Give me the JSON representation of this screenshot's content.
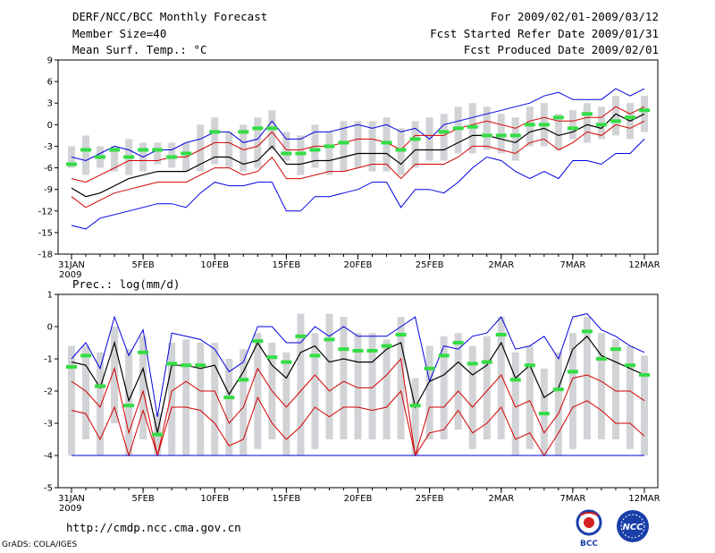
{
  "header": {
    "title": "DERF/NCC/BCC Monthly Forecast",
    "member_size": "Member Size=40",
    "variable": "Mean Surf. Temp.: °C",
    "period": "For 2009/02/01-2009/03/12",
    "refer_date": "Fcst Started Refer Date 2009/01/31",
    "produced_date": "Fcst Produced Date 2009/02/01"
  },
  "footer": {
    "url": "http://cmdp.ncc.cma.gov.cn",
    "credit": "GrADS: COLA/IGES",
    "logo_bcc": "BCC",
    "logo_ncc": "NCC"
  },
  "colors": {
    "box": "#d2d3d6",
    "mean": "#000000",
    "spread": "#d40000",
    "extreme": "#0000e0",
    "obs": "#33dd44"
  },
  "chart_data": [
    {
      "type": "line",
      "title": "Mean Surf. Temp.: °C",
      "x_days": 41,
      "ylim": [
        -18,
        9
      ],
      "yticks": [
        -18,
        -15,
        -12,
        -9,
        -6,
        -3,
        0,
        3,
        6,
        9
      ],
      "xtick_labels": [
        "31JAN",
        "5FEB",
        "10FEB",
        "15FEB",
        "20FEB",
        "25FEB",
        "2MAR",
        "7MAR",
        "12MAR"
      ],
      "xtick_days": [
        0,
        5,
        10,
        15,
        20,
        25,
        30,
        35,
        40
      ],
      "year_label": "2009",
      "series": [
        {
          "name": "max",
          "role": "extreme",
          "values": [
            -4.5,
            -5,
            -4,
            -3,
            -3.5,
            -4.5,
            -3.5,
            -3.5,
            -2.5,
            -2,
            -1,
            -1,
            -2.5,
            -2,
            0.5,
            -2,
            -2,
            -1,
            -1,
            -0.5,
            0,
            -0.5,
            0,
            -1,
            -0.5,
            -2,
            0,
            0.5,
            1,
            1.5,
            2,
            2.5,
            3,
            4,
            4.5,
            3.5,
            3.5,
            3.5,
            5,
            4,
            5
          ]
        },
        {
          "name": "p75",
          "role": "spread",
          "values": [
            -7.5,
            -8,
            -7,
            -6,
            -5,
            -5,
            -5,
            -4.5,
            -4.5,
            -3.5,
            -2.5,
            -2.5,
            -3.5,
            -3,
            -1,
            -3.5,
            -3.5,
            -3,
            -3,
            -2.5,
            -2,
            -2,
            -2.5,
            -3.5,
            -1.5,
            -1.5,
            -1.5,
            -0.5,
            0,
            0.5,
            0,
            -0.5,
            0.5,
            1,
            0.5,
            0.5,
            1,
            1,
            2.5,
            1.5,
            2.5
          ]
        },
        {
          "name": "mean",
          "role": "mean",
          "values": [
            -8.8,
            -10,
            -9.5,
            -8.5,
            -7.5,
            -7,
            -6.5,
            -6.5,
            -6.5,
            -5.5,
            -4.5,
            -4.5,
            -5.5,
            -5,
            -3,
            -5.5,
            -5.5,
            -5,
            -5,
            -4.5,
            -4,
            -4,
            -4,
            -5.5,
            -3.5,
            -3.5,
            -3.5,
            -2.5,
            -1.5,
            -1.5,
            -2,
            -2.5,
            -1,
            -0.5,
            -1.5,
            -1,
            0,
            -0.5,
            1.5,
            0.5,
            1.5
          ]
        },
        {
          "name": "p25",
          "role": "spread",
          "values": [
            -10,
            -11.5,
            -10.5,
            -9.5,
            -9,
            -8.5,
            -8,
            -8,
            -8,
            -7,
            -6,
            -6,
            -7,
            -6.5,
            -4.5,
            -7.5,
            -7.5,
            -7,
            -6.5,
            -6.5,
            -6,
            -5.5,
            -5.5,
            -7.5,
            -5.5,
            -5.5,
            -5.5,
            -4.5,
            -3,
            -3,
            -3.5,
            -4,
            -2.5,
            -2,
            -3.5,
            -2.5,
            -1,
            -1.5,
            0,
            -0.5,
            0.5
          ]
        },
        {
          "name": "min",
          "role": "extreme",
          "values": [
            -14,
            -14.5,
            -13,
            -12.5,
            -12,
            -11.5,
            -11,
            -11,
            -11.5,
            -9.5,
            -8,
            -8.5,
            -8.5,
            -8,
            -8,
            -12,
            -12,
            -10,
            -10,
            -9.5,
            -9,
            -8,
            -8,
            -11.5,
            -9,
            -9,
            -9.5,
            -8,
            -6,
            -4.5,
            -5,
            -6.5,
            -7.5,
            -6.5,
            -7.5,
            -5,
            -5,
            -5.5,
            -4,
            -4,
            -2
          ]
        },
        {
          "name": "obs",
          "role": "obs",
          "values": [
            -5.5,
            -3.5,
            -4.5,
            -3.5,
            -4.5,
            -3.5,
            -3.5,
            -4.5,
            -4,
            null,
            -1,
            null,
            -1,
            -0.5,
            -0.5,
            -4,
            -4,
            -3.5,
            -3,
            -2.5,
            null,
            null,
            -2.5,
            -3.5,
            -2,
            null,
            -1,
            -0.5,
            -0.3,
            -1.5,
            -1.5,
            -1.5,
            0,
            0,
            1,
            -0.5,
            1.5,
            0,
            0.5,
            1,
            2
          ]
        }
      ],
      "box_ranges": [
        [
          -6,
          -3
        ],
        [
          -7,
          -1.5
        ],
        [
          -6,
          -3
        ],
        [
          -6.5,
          -3
        ],
        [
          -7,
          -2
        ],
        [
          -6.5,
          -2.5
        ],
        [
          -5.5,
          -2.5
        ],
        [
          -6,
          -2.5
        ],
        [
          -6.5,
          -2.5
        ],
        [
          -6.5,
          0
        ],
        [
          -5.5,
          1
        ],
        [
          -6,
          -1
        ],
        [
          -6.5,
          0
        ],
        [
          -6,
          1
        ],
        [
          -3.5,
          2
        ],
        [
          -5,
          -1
        ],
        [
          -7,
          -1.5
        ],
        [
          -6,
          0
        ],
        [
          -7,
          -1
        ],
        [
          -6.5,
          0.5
        ],
        [
          -6,
          0.5
        ],
        [
          -6.5,
          0.5
        ],
        [
          -6.5,
          1
        ],
        [
          -7,
          -0.5
        ],
        [
          -6,
          0.5
        ],
        [
          -5,
          1
        ],
        [
          -5,
          1.5
        ],
        [
          -4,
          2.5
        ],
        [
          -4,
          3
        ],
        [
          -3.5,
          2.5
        ],
        [
          -4,
          1.5
        ],
        [
          -5,
          1
        ],
        [
          -3,
          2.5
        ],
        [
          -3,
          3
        ],
        [
          -3.5,
          1.5
        ],
        [
          -2,
          2
        ],
        [
          -2.5,
          3
        ],
        [
          -2,
          2.5
        ],
        [
          -1.5,
          4
        ],
        [
          -2,
          3
        ],
        [
          -1,
          4
        ]
      ]
    },
    {
      "type": "line",
      "title": "Prec.: log(mm/d)",
      "x_days": 41,
      "ylim": [
        -5,
        1
      ],
      "yticks": [
        -5,
        -4,
        -3,
        -2,
        -1,
        0,
        1
      ],
      "xtick_labels": [
        "31JAN",
        "5FEB",
        "10FEB",
        "15FEB",
        "20FEB",
        "25FEB",
        "2MAR",
        "7MAR",
        "12MAR"
      ],
      "xtick_days": [
        0,
        5,
        10,
        15,
        20,
        25,
        30,
        35,
        40
      ],
      "year_label": "2009",
      "series": [
        {
          "name": "max",
          "role": "extreme",
          "values": [
            -1,
            -0.5,
            -1.3,
            0.3,
            -0.9,
            -0.1,
            -2.8,
            -0.2,
            -0.3,
            -0.4,
            -0.7,
            -1.4,
            -1.1,
            0,
            0,
            -0.5,
            -0.5,
            0,
            -0.3,
            0,
            -0.3,
            -0.3,
            -0.3,
            0,
            0.3,
            -1.7,
            -0.6,
            -0.7,
            -0.3,
            -0.2,
            0.3,
            -0.7,
            -0.6,
            -0.3,
            -1,
            0.3,
            0.4,
            -0.1,
            -0.3,
            -0.6,
            -0.8
          ]
        },
        {
          "name": "mean",
          "role": "mean",
          "values": [
            -1.1,
            -1.2,
            -1.9,
            -0.5,
            -2.3,
            -1.3,
            -3.3,
            -1.2,
            -1.2,
            -1.3,
            -1.2,
            -2.1,
            -1.4,
            -0.5,
            -1.2,
            -1.6,
            -0.8,
            -0.6,
            -1.1,
            -1,
            -1.1,
            -1.1,
            -0.7,
            -0.5,
            -2.5,
            -1.7,
            -1.5,
            -1.1,
            -1.5,
            -1.2,
            -0.5,
            -1.6,
            -1.2,
            -2.2,
            -1.9,
            -0.7,
            -0.3,
            -0.9,
            -1.1,
            -1.3,
            -1.5
          ]
        },
        {
          "name": "p75",
          "role": "spread",
          "values": [
            -1.7,
            -2,
            -2.5,
            -1.3,
            -3.3,
            -2,
            -4,
            -2,
            -1.7,
            -2,
            -2,
            -3,
            -2.5,
            -1.3,
            -2,
            -2.5,
            -2,
            -1.5,
            -2,
            -1.7,
            -1.9,
            -1.9,
            -1.5,
            -1,
            -4,
            -2.5,
            -2.5,
            -2,
            -2.5,
            -2,
            -1.5,
            -2.5,
            -2.3,
            -3.3,
            -2.7,
            -1.6,
            -1.5,
            -1.7,
            -2,
            -2,
            -2.3
          ]
        },
        {
          "name": "p25",
          "role": "spread",
          "values": [
            -2.6,
            -2.7,
            -3.5,
            -2.5,
            -4,
            -2.6,
            -4,
            -2.5,
            -2.5,
            -2.6,
            -3,
            -3.7,
            -3.5,
            -2.2,
            -3,
            -3.5,
            -3.1,
            -2.5,
            -2.8,
            -2.5,
            -2.5,
            -2.6,
            -2.5,
            -2,
            -4,
            -3.3,
            -3.2,
            -2.6,
            -3.3,
            -3,
            -2.5,
            -3.5,
            -3.3,
            -4,
            -3.3,
            -2.5,
            -2.3,
            -2.6,
            -3,
            -3,
            -3.4
          ]
        },
        {
          "name": "min",
          "role": "extreme",
          "values": [
            -4,
            -4,
            -4,
            -4,
            -4,
            -4,
            -4,
            -4,
            -4,
            -4,
            -4,
            -4,
            -4,
            -4,
            -4,
            -4,
            -4,
            -4,
            -4,
            -4,
            -4,
            -4,
            -4,
            -4,
            -4,
            -4,
            -4,
            -4,
            -4,
            -4,
            -4,
            -4,
            -4,
            -4,
            -4,
            -4,
            -4,
            -4,
            -4,
            -4,
            -4
          ]
        },
        {
          "name": "obs",
          "role": "obs",
          "values": [
            -1.25,
            -0.9,
            -1.85,
            null,
            -2.45,
            -0.8,
            -3.35,
            -1.15,
            -1.2,
            -1.2,
            null,
            -2.2,
            -1.65,
            -0.45,
            -0.95,
            -1.1,
            -0.3,
            -0.9,
            -0.4,
            -0.7,
            -0.75,
            -0.75,
            -0.6,
            -0.25,
            -2.45,
            -1.3,
            -0.9,
            -0.5,
            -1.15,
            -1.1,
            -0.25,
            -1.65,
            -1.2,
            -2.7,
            -1.95,
            -1.4,
            -0.15,
            -1,
            -0.7,
            -1.2,
            -1.5
          ]
        }
      ],
      "box_ranges": [
        [
          -4,
          -0.6
        ],
        [
          -3.5,
          -0.6
        ],
        [
          -4,
          -0.8
        ],
        [
          -3,
          0
        ],
        [
          -4,
          -0.7
        ],
        [
          -3.5,
          -0.3
        ],
        [
          -4,
          -2.7
        ],
        [
          -4,
          -0.5
        ],
        [
          -4,
          -0.4
        ],
        [
          -4,
          -0.5
        ],
        [
          -4,
          -0.5
        ],
        [
          -4,
          -1
        ],
        [
          -4,
          -0.7
        ],
        [
          -3.8,
          -0.2
        ],
        [
          -3.5,
          -0.5
        ],
        [
          -4,
          -0.8
        ],
        [
          -4,
          0.4
        ],
        [
          -3.8,
          -0.2
        ],
        [
          -3.5,
          0.4
        ],
        [
          -3.5,
          0.3
        ],
        [
          -3.5,
          -0.2
        ],
        [
          -3.5,
          -0.2
        ],
        [
          -3.5,
          -0.4
        ],
        [
          -3.5,
          0.3
        ],
        [
          -4,
          -1.6
        ],
        [
          -3.5,
          -0.6
        ],
        [
          -3.5,
          -0.3
        ],
        [
          -3.2,
          -0.2
        ],
        [
          -3.8,
          -0.6
        ],
        [
          -3.5,
          -0.3
        ],
        [
          -3.5,
          0.3
        ],
        [
          -4,
          -0.8
        ],
        [
          -3.8,
          -0.6
        ],
        [
          -4,
          -1.3
        ],
        [
          -4,
          -0.8
        ],
        [
          -3.8,
          -0.2
        ],
        [
          -3.5,
          0.3
        ],
        [
          -3.5,
          -0.2
        ],
        [
          -3.5,
          -0.4
        ],
        [
          -3.8,
          -0.6
        ],
        [
          -4,
          -0.9
        ]
      ]
    }
  ]
}
